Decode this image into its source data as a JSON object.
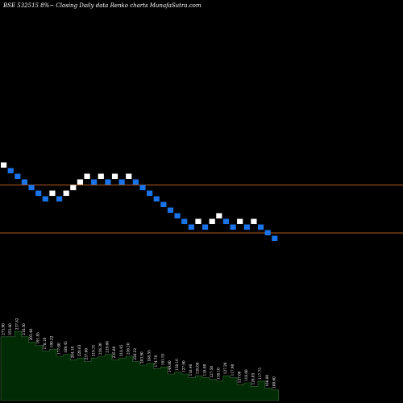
{
  "header": {
    "title": "BSE 532515 8%~  Closing Daily data  Renko  charts MunafaSutra.com"
  },
  "colors": {
    "background": "#000000",
    "up_brick": "#ffffff",
    "down_brick": "#1a73e8",
    "reference_line": "#b05a1e",
    "volume_area": "#012b05",
    "volume_edge": "#3a6b3a"
  },
  "chart_data": {
    "type": "renko",
    "title": "BSE 532515 8%~  Closing Daily data  Renko  charts MunafaSutra.com",
    "xlabel": "",
    "ylabel": "",
    "grid": false,
    "legend": "none",
    "brick_size_pct": 8,
    "reference_levels": [
      1,
      9.5
    ],
    "bricks": [
      {
        "dir": "up",
        "level": 13
      },
      {
        "dir": "down",
        "level": 12
      },
      {
        "dir": "down",
        "level": 11
      },
      {
        "dir": "down",
        "level": 10
      },
      {
        "dir": "down",
        "level": 9
      },
      {
        "dir": "down",
        "level": 8
      },
      {
        "dir": "down",
        "level": 7
      },
      {
        "dir": "up",
        "level": 8
      },
      {
        "dir": "down",
        "level": 7
      },
      {
        "dir": "up",
        "level": 8
      },
      {
        "dir": "up",
        "level": 9
      },
      {
        "dir": "up",
        "level": 10
      },
      {
        "dir": "up",
        "level": 11
      },
      {
        "dir": "down",
        "level": 10
      },
      {
        "dir": "up",
        "level": 11
      },
      {
        "dir": "down",
        "level": 10
      },
      {
        "dir": "up",
        "level": 11
      },
      {
        "dir": "down",
        "level": 10
      },
      {
        "dir": "up",
        "level": 11
      },
      {
        "dir": "down",
        "level": 10
      },
      {
        "dir": "down",
        "level": 9
      },
      {
        "dir": "down",
        "level": 8
      },
      {
        "dir": "down",
        "level": 7
      },
      {
        "dir": "down",
        "level": 6
      },
      {
        "dir": "down",
        "level": 5
      },
      {
        "dir": "down",
        "level": 4
      },
      {
        "dir": "down",
        "level": 3
      },
      {
        "dir": "down",
        "level": 2
      },
      {
        "dir": "up",
        "level": 3
      },
      {
        "dir": "down",
        "level": 2
      },
      {
        "dir": "up",
        "level": 3
      },
      {
        "dir": "up",
        "level": 4
      },
      {
        "dir": "down",
        "level": 3
      },
      {
        "dir": "down",
        "level": 2
      },
      {
        "dir": "up",
        "level": 3
      },
      {
        "dir": "down",
        "level": 2
      },
      {
        "dir": "up",
        "level": 3
      },
      {
        "dir": "down",
        "level": 2
      },
      {
        "dir": "down",
        "level": 1
      },
      {
        "dir": "down",
        "level": 0
      }
    ],
    "volume_profile": [
      0.72,
      0.72,
      0.78,
      0.72,
      0.66,
      0.62,
      0.56,
      0.58,
      0.5,
      0.52,
      0.46,
      0.48,
      0.44,
      0.48,
      0.5,
      0.52,
      0.46,
      0.48,
      0.5,
      0.44,
      0.4,
      0.42,
      0.36,
      0.38,
      0.3,
      0.32,
      0.3,
      0.26,
      0.28,
      0.26,
      0.24,
      0.22,
      0.28,
      0.26,
      0.18,
      0.2,
      0.16,
      0.22,
      0.14,
      0.12
    ],
    "brick_labels": [
      "273.90",
      "255.60",
      "237.82",
      "218.30",
      "203.40",
      "191.85",
      "178.10",
      "190.22",
      "177.60",
      "189.45",
      "204.10",
      "220.63",
      "237.60",
      "219.31",
      "236.30",
      "219.60",
      "235.80",
      "218.45",
      "236.10",
      "220.22",
      "203.90",
      "188.55",
      "174.70",
      "161.55",
      "149.80",
      "138.10",
      "127.90",
      "118.46",
      "128.00",
      "118.90",
      "127.50",
      "138.10",
      "127.20",
      "117.90",
      "127.00",
      "118.60",
      "128.05",
      "117.75",
      "108.80",
      "100.60"
    ]
  }
}
